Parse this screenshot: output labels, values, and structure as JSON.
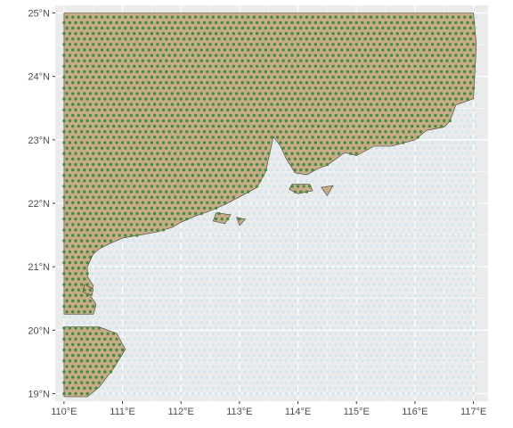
{
  "map": {
    "extent": {
      "lon_min": 109.85,
      "lon_max": 117.25,
      "lat_min": 18.88,
      "lat_max": 25.12
    },
    "x_ticks": [
      {
        "value": 110,
        "label": "110°E"
      },
      {
        "value": 111,
        "label": "111°E"
      },
      {
        "value": 112,
        "label": "112°E"
      },
      {
        "value": 113,
        "label": "113°E"
      },
      {
        "value": 114,
        "label": "114°E"
      },
      {
        "value": 115,
        "label": "115°E"
      },
      {
        "value": 116,
        "label": "116°E"
      },
      {
        "value": 117,
        "label": "117°E"
      }
    ],
    "y_ticks": [
      {
        "value": 19,
        "label": "19°N"
      },
      {
        "value": 20,
        "label": "20°N"
      },
      {
        "value": 21,
        "label": "21°N"
      },
      {
        "value": 22,
        "label": "22°N"
      },
      {
        "value": 23,
        "label": "23°N"
      },
      {
        "value": 24,
        "label": "24°N"
      },
      {
        "value": 25,
        "label": "25°N"
      }
    ],
    "grid": {
      "lon_min": 110.0,
      "lon_max": 117.05,
      "lat_min": 19.0,
      "lat_max": 25.0,
      "lon_step": 0.1,
      "lat_step": 0.086
    },
    "land_polygon": [
      [
        110.0,
        25.0
      ],
      [
        117.0,
        25.0
      ],
      [
        117.05,
        24.5
      ],
      [
        117.0,
        23.65
      ],
      [
        116.7,
        23.55
      ],
      [
        116.6,
        23.3
      ],
      [
        116.5,
        23.2
      ],
      [
        116.2,
        23.15
      ],
      [
        116.0,
        23.0
      ],
      [
        115.6,
        22.9
      ],
      [
        115.3,
        22.9
      ],
      [
        115.0,
        22.75
      ],
      [
        114.8,
        22.8
      ],
      [
        114.5,
        22.6
      ],
      [
        114.35,
        22.55
      ],
      [
        114.15,
        22.45
      ],
      [
        113.95,
        22.48
      ],
      [
        113.8,
        22.7
      ],
      [
        113.7,
        22.9
      ],
      [
        113.58,
        23.05
      ],
      [
        113.45,
        22.5
      ],
      [
        113.3,
        22.25
      ],
      [
        113.1,
        22.15
      ],
      [
        112.75,
        21.98
      ],
      [
        112.5,
        21.88
      ],
      [
        112.25,
        21.8
      ],
      [
        112.0,
        21.7
      ],
      [
        111.85,
        21.62
      ],
      [
        111.6,
        21.55
      ],
      [
        111.3,
        21.5
      ],
      [
        111.0,
        21.45
      ],
      [
        110.75,
        21.35
      ],
      [
        110.6,
        21.28
      ],
      [
        110.5,
        21.2
      ],
      [
        110.4,
        21.0
      ],
      [
        110.4,
        20.85
      ],
      [
        110.5,
        20.7
      ],
      [
        110.45,
        20.55
      ],
      [
        110.55,
        20.4
      ],
      [
        110.5,
        20.25
      ],
      [
        110.0,
        20.25
      ]
    ],
    "islands": [
      [
        [
          110.0,
          20.05
        ],
        [
          110.6,
          20.05
        ],
        [
          110.9,
          19.95
        ],
        [
          111.05,
          19.7
        ],
        [
          110.85,
          19.4
        ],
        [
          110.6,
          19.1
        ],
        [
          110.4,
          18.95
        ],
        [
          110.0,
          18.95
        ]
      ],
      [
        [
          113.9,
          22.3
        ],
        [
          114.2,
          22.3
        ],
        [
          114.25,
          22.2
        ],
        [
          114.0,
          22.15
        ],
        [
          113.85,
          22.22
        ]
      ],
      [
        [
          114.4,
          22.25
        ],
        [
          114.6,
          22.28
        ],
        [
          114.5,
          22.12
        ]
      ],
      [
        [
          112.6,
          21.85
        ],
        [
          112.85,
          21.82
        ],
        [
          112.75,
          21.68
        ],
        [
          112.55,
          21.72
        ]
      ],
      [
        [
          112.95,
          21.78
        ],
        [
          113.1,
          21.75
        ],
        [
          113.0,
          21.65
        ]
      ],
      [
        [
          110.35,
          20.72
        ],
        [
          110.5,
          20.65
        ],
        [
          110.48,
          20.55
        ],
        [
          110.32,
          20.6
        ]
      ]
    ],
    "colors": {
      "panel_background": "#ebebeb",
      "gridline": "#ffffff",
      "land_fill": "#c8ab87",
      "land_border": "#3d3d3d",
      "land_dot": "#3f8c3f",
      "sea_dot": "#d1e6ee",
      "tick_text": "#4d4d4d",
      "tick_mark": "#333333"
    }
  }
}
